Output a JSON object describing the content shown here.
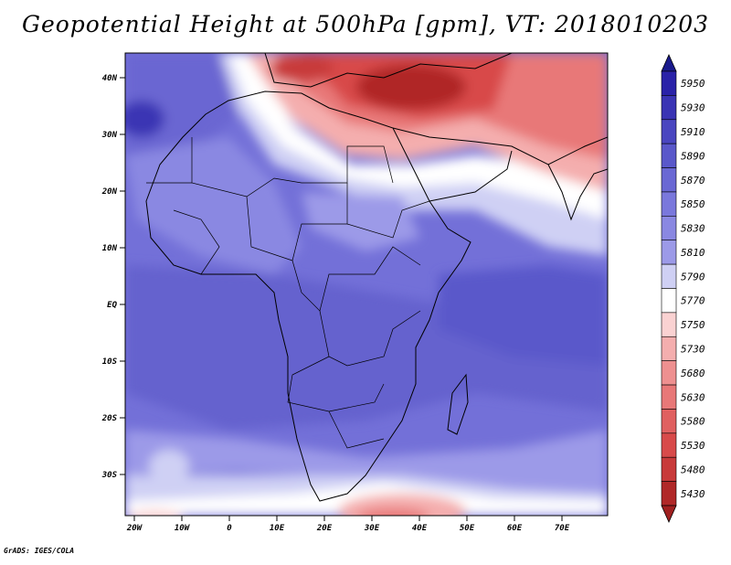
{
  "title": "Geopotential Height at 500hPa [gpm], VT: 2018010203",
  "credit": "GrADS: IGES/COLA",
  "map": {
    "lat_ticks": [
      "40N",
      "30N",
      "20N",
      "10N",
      "EQ",
      "10S",
      "20S",
      "30S"
    ],
    "lon_ticks": [
      "20W",
      "10W",
      "0",
      "10E",
      "20E",
      "30E",
      "40E",
      "50E",
      "60E",
      "70E"
    ]
  },
  "colorbar": {
    "levels": [
      "5950",
      "5930",
      "5910",
      "5890",
      "5870",
      "5850",
      "5830",
      "5810",
      "5790",
      "5770",
      "5750",
      "5730",
      "5680",
      "5630",
      "5580",
      "5530",
      "5480",
      "5430"
    ],
    "colors": {
      "top_arrow": "#1a1a8c",
      "5950": "#2a22a8",
      "5930": "#3a34b4",
      "5910": "#4a46c0",
      "5890": "#5a58ca",
      "5870": "#6a68d4",
      "5850": "#7a78dc",
      "5830": "#8a88e2",
      "5810": "#9c9ae8",
      "5790": "#cfd0f4",
      "5770": "#ffffff",
      "5750": "#fad2d2",
      "5730": "#f4aeae",
      "5680": "#ee9090",
      "5630": "#e87878",
      "5580": "#e06060",
      "5530": "#d84a4a",
      "5480": "#c83a3a",
      "5430": "#b02828",
      "bottom_arrow": "#a02020"
    }
  }
}
